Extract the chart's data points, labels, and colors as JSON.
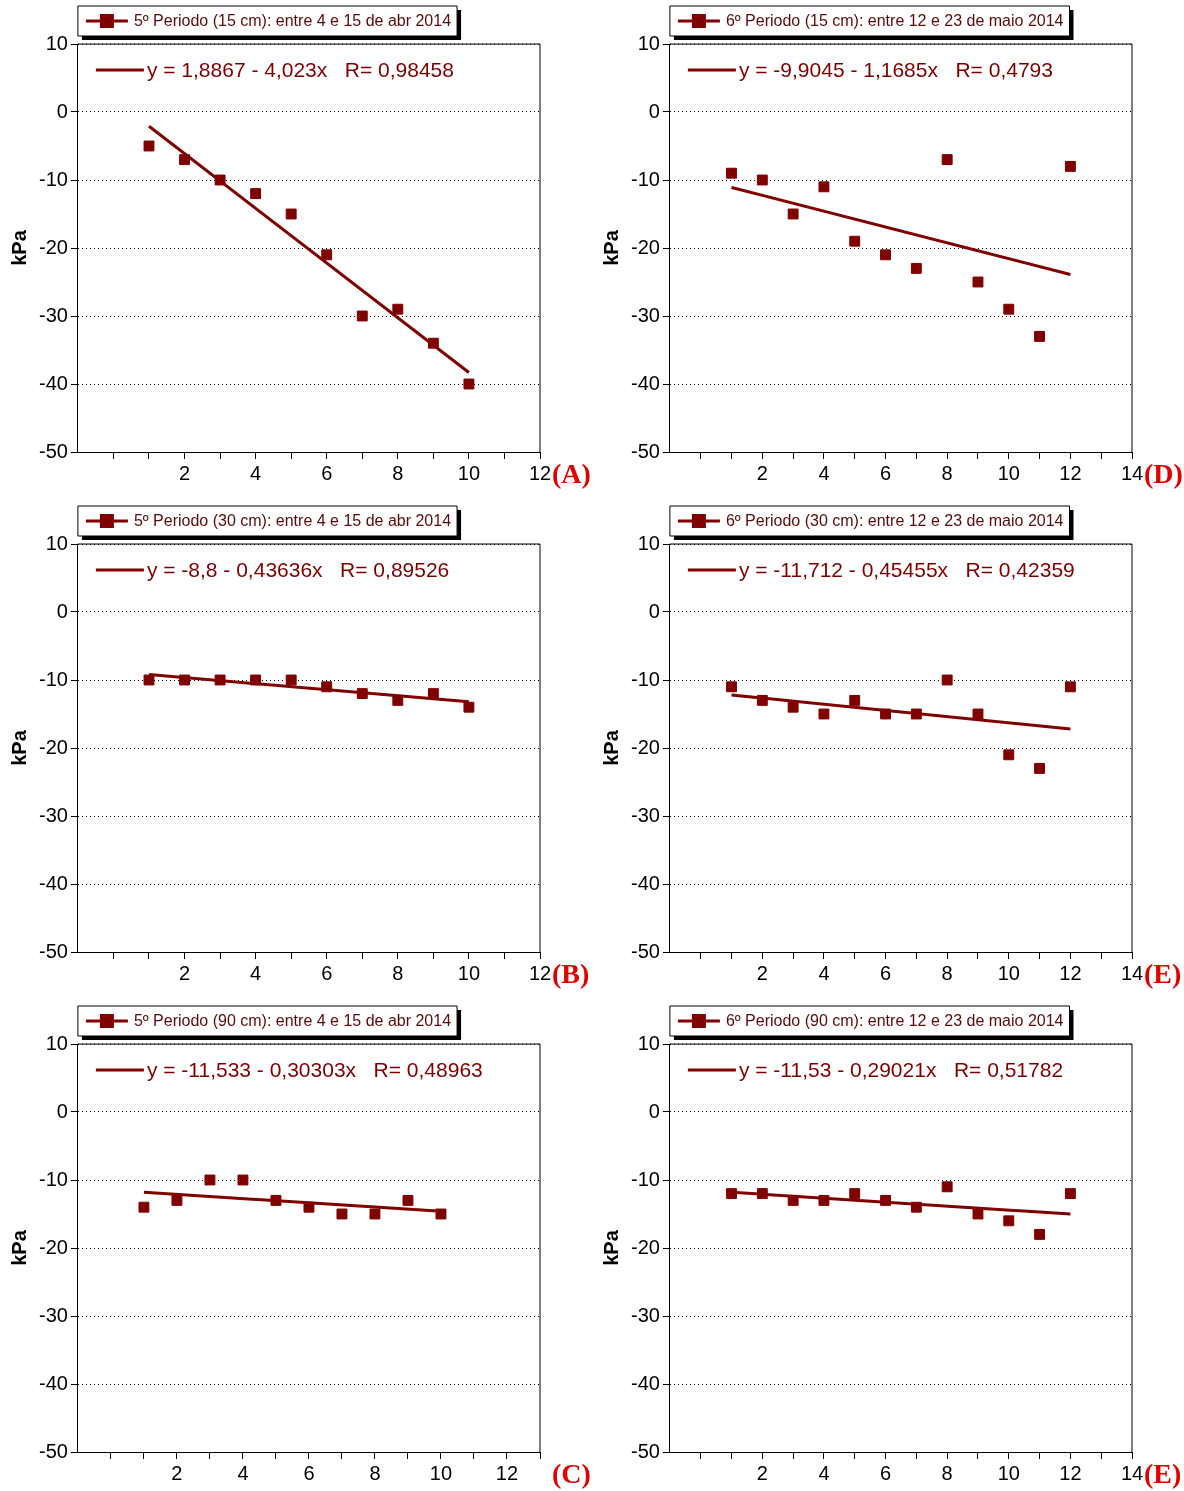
{
  "chart_data": [
    {
      "type": "scatter",
      "ylabel": "kPa",
      "xlim": [
        -1,
        12
      ],
      "xticks": [
        {
          "value": 0,
          "label": null
        },
        {
          "value": 1,
          "label": null
        },
        2,
        {
          "value": 3,
          "label": null
        },
        4,
        {
          "value": 5,
          "label": null
        },
        6,
        {
          "value": 7,
          "label": null
        },
        8,
        {
          "value": 9,
          "label": null
        },
        10,
        {
          "value": 11,
          "label": null
        },
        12
      ],
      "ylim": [
        -50,
        10
      ],
      "yticks": [
        -50,
        -40,
        -30,
        -20,
        -10,
        0,
        10
      ],
      "grid": "y",
      "legend": "top",
      "annotations": [
        "(A)"
      ],
      "series": [
        {
          "name": "5º Periodo (15 cm): entre 4 e 15 de abr 2014",
          "type": "scatter",
          "marker": "square",
          "color": "#800000",
          "x": [
            1,
            2,
            3,
            4,
            5,
            6,
            7,
            8,
            9,
            10
          ],
          "values": [
            -5,
            -7,
            -10,
            -12,
            -15,
            -21,
            -30,
            -29,
            -34,
            -40
          ]
        },
        {
          "name": "y = 1,8867 - 4,023x   R= 0,98458",
          "type": "line",
          "color": "#800000",
          "x": [
            1,
            10
          ],
          "values": [
            -2.1,
            -38.3
          ]
        }
      ]
    },
    {
      "type": "scatter",
      "ylabel": "kPa",
      "xlim": [
        -1,
        14
      ],
      "xticks": [
        {
          "value": 0,
          "label": null
        },
        {
          "value": 1,
          "label": null
        },
        2,
        {
          "value": 3,
          "label": null
        },
        4,
        {
          "value": 5,
          "label": null
        },
        6,
        {
          "value": 7,
          "label": null
        },
        8,
        {
          "value": 9,
          "label": null
        },
        10,
        {
          "value": 11,
          "label": null
        },
        12,
        {
          "value": 13,
          "label": null
        },
        14
      ],
      "ylim": [
        -50,
        10
      ],
      "yticks": [
        -50,
        -40,
        -30,
        -20,
        -10,
        0,
        10
      ],
      "grid": "y",
      "legend": "top",
      "annotations": [
        "(D)"
      ],
      "series": [
        {
          "name": "6º Periodo (15 cm): entre 12 e 23 de maio 2014",
          "type": "scatter",
          "marker": "square",
          "color": "#800000",
          "x": [
            1,
            2,
            3,
            4,
            5,
            6,
            7,
            8,
            9,
            10,
            11,
            12
          ],
          "values": [
            -9,
            -10,
            -15,
            -11,
            -19,
            -21,
            -23,
            -7,
            -25,
            -29,
            -33,
            -8
          ]
        },
        {
          "name": "y = -9,9045 - 1,1685x   R= 0,4793",
          "type": "line",
          "color": "#800000",
          "x": [
            1,
            12
          ],
          "values": [
            -11.1,
            -23.9
          ]
        }
      ]
    },
    {
      "type": "scatter",
      "ylabel": "kPa",
      "xlim": [
        -1,
        12
      ],
      "xticks": [
        {
          "value": 0,
          "label": null
        },
        {
          "value": 1,
          "label": null
        },
        2,
        {
          "value": 3,
          "label": null
        },
        4,
        {
          "value": 5,
          "label": null
        },
        6,
        {
          "value": 7,
          "label": null
        },
        8,
        {
          "value": 9,
          "label": null
        },
        10,
        {
          "value": 11,
          "label": null
        },
        12
      ],
      "ylim": [
        -50,
        10
      ],
      "yticks": [
        -50,
        -40,
        -30,
        -20,
        -10,
        0,
        10
      ],
      "grid": "y",
      "legend": "top",
      "annotations": [
        "(B)"
      ],
      "series": [
        {
          "name": "5º Periodo (30 cm): entre 4 e 15 de abr 2014",
          "type": "scatter",
          "marker": "square",
          "color": "#800000",
          "x": [
            1,
            2,
            3,
            4,
            5,
            6,
            7,
            8,
            9,
            10
          ],
          "values": [
            -10,
            -10,
            -10,
            -10,
            -10,
            -11,
            -12,
            -13,
            -12,
            -14
          ]
        },
        {
          "name": "y = -8,8 - 0,43636x   R= 0,89526",
          "type": "line",
          "color": "#800000",
          "x": [
            1,
            10
          ],
          "values": [
            -9.2,
            -13.2
          ]
        }
      ]
    },
    {
      "type": "scatter",
      "ylabel": "kPa",
      "xlim": [
        -1,
        14
      ],
      "xticks": [
        {
          "value": 0,
          "label": null
        },
        {
          "value": 1,
          "label": null
        },
        2,
        {
          "value": 3,
          "label": null
        },
        4,
        {
          "value": 5,
          "label": null
        },
        6,
        {
          "value": 7,
          "label": null
        },
        8,
        {
          "value": 9,
          "label": null
        },
        10,
        {
          "value": 11,
          "label": null
        },
        12,
        {
          "value": 13,
          "label": null
        },
        14
      ],
      "ylim": [
        -50,
        10
      ],
      "yticks": [
        -50,
        -40,
        -30,
        -20,
        -10,
        0,
        10
      ],
      "grid": "y",
      "legend": "top",
      "annotations": [
        "(E)"
      ],
      "series": [
        {
          "name": "6º Periodo (30 cm): entre 12 e 23 de maio 2014",
          "type": "scatter",
          "marker": "square",
          "color": "#800000",
          "x": [
            1,
            2,
            3,
            4,
            5,
            6,
            7,
            8,
            9,
            10,
            11,
            12
          ],
          "values": [
            -11,
            -13,
            -14,
            -15,
            -13,
            -15,
            -15,
            -10,
            -15,
            -21,
            -23,
            -11
          ]
        },
        {
          "name": "y = -11,712 - 0,45455x   R= 0,42359",
          "type": "line",
          "color": "#800000",
          "x": [
            1,
            12
          ],
          "values": [
            -12.2,
            -17.2
          ]
        }
      ]
    },
    {
      "type": "scatter",
      "ylabel": "kPa",
      "xlim": [
        -1,
        13
      ],
      "xticks": [
        {
          "value": 0,
          "label": null
        },
        {
          "value": 1,
          "label": null
        },
        2,
        {
          "value": 3,
          "label": null
        },
        4,
        {
          "value": 5,
          "label": null
        },
        6,
        {
          "value": 7,
          "label": null
        },
        8,
        {
          "value": 9,
          "label": null
        },
        10,
        {
          "value": 11,
          "label": null
        },
        12,
        {
          "value": 13,
          "label": null
        }
      ],
      "ylim": [
        -50,
        10
      ],
      "yticks": [
        -50,
        -40,
        -30,
        -20,
        -10,
        0,
        10
      ],
      "grid": "y",
      "legend": "top",
      "annotations": [
        "(C)"
      ],
      "series": [
        {
          "name": "5º Periodo (90 cm): entre 4 e 15 de abr 2014",
          "type": "scatter",
          "marker": "square",
          "color": "#800000",
          "x": [
            1,
            2,
            3,
            4,
            5,
            6,
            7,
            8,
            9,
            10
          ],
          "values": [
            -14,
            -13,
            -10,
            -10,
            -13,
            -14,
            -15,
            -15,
            -13,
            -15
          ]
        },
        {
          "name": "y = -11,533 - 0,30303x   R= 0,48963",
          "type": "line",
          "color": "#800000",
          "x": [
            1,
            10
          ],
          "values": [
            -11.8,
            -14.6
          ]
        }
      ]
    },
    {
      "type": "scatter",
      "ylabel": "kPa",
      "xlim": [
        -1,
        14
      ],
      "xticks": [
        {
          "value": 0,
          "label": null
        },
        {
          "value": 1,
          "label": null
        },
        2,
        {
          "value": 3,
          "label": null
        },
        4,
        {
          "value": 5,
          "label": null
        },
        6,
        {
          "value": 7,
          "label": null
        },
        8,
        {
          "value": 9,
          "label": null
        },
        10,
        {
          "value": 11,
          "label": null
        },
        12,
        {
          "value": 13,
          "label": null
        },
        14
      ],
      "ylim": [
        -50,
        10
      ],
      "yticks": [
        -50,
        -40,
        -30,
        -20,
        -10,
        0,
        10
      ],
      "grid": "y",
      "legend": "top",
      "annotations": [
        "(E)"
      ],
      "series": [
        {
          "name": "6º Periodo (90 cm): entre 12 e 23 de maio 2014",
          "type": "scatter",
          "marker": "square",
          "color": "#800000",
          "x": [
            1,
            2,
            3,
            4,
            5,
            6,
            7,
            8,
            9,
            10,
            11,
            12
          ],
          "values": [
            -12,
            -12,
            -13,
            -13,
            -12,
            -13,
            -14,
            -11,
            -15,
            -16,
            -18,
            -12
          ]
        },
        {
          "name": "y = -11,53 - 0,29021x   R= 0,51782",
          "type": "line",
          "color": "#800000",
          "x": [
            1,
            12
          ],
          "values": [
            -11.8,
            -15
          ]
        }
      ]
    }
  ]
}
